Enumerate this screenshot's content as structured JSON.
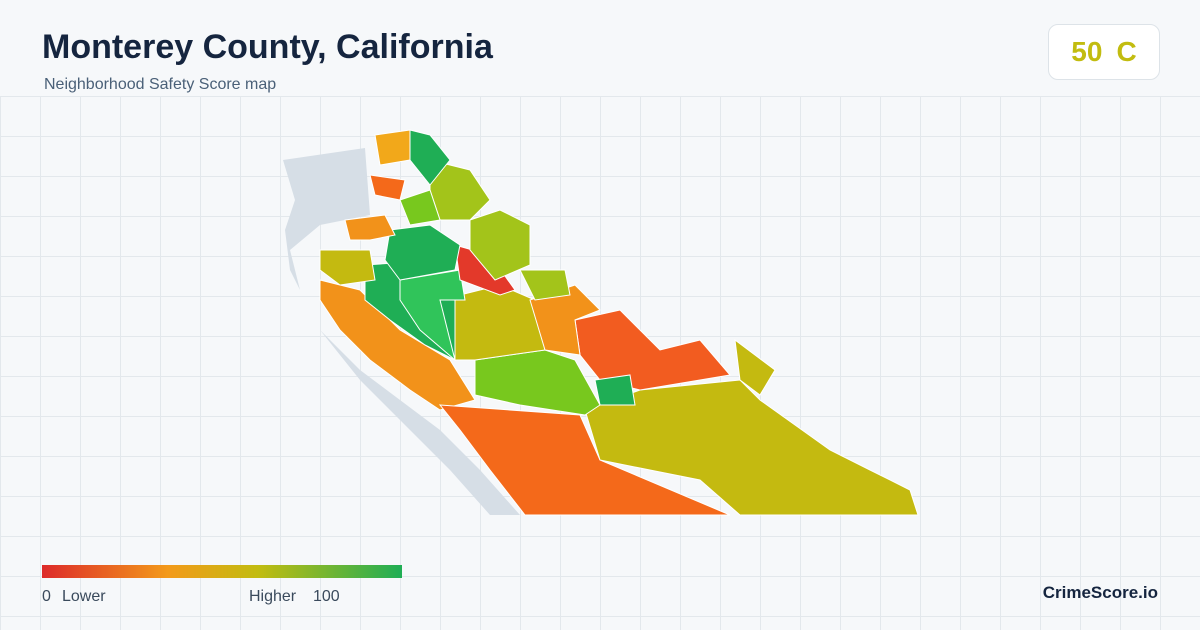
{
  "header": {
    "title": "Monterey County, California",
    "subtitle": "Neighborhood Safety Score map"
  },
  "score": {
    "value": 50,
    "grade": "C"
  },
  "legend": {
    "min": 0,
    "min_label": "Lower",
    "max_label": "Higher",
    "max": 100
  },
  "brand": "CrimeScore.io"
}
